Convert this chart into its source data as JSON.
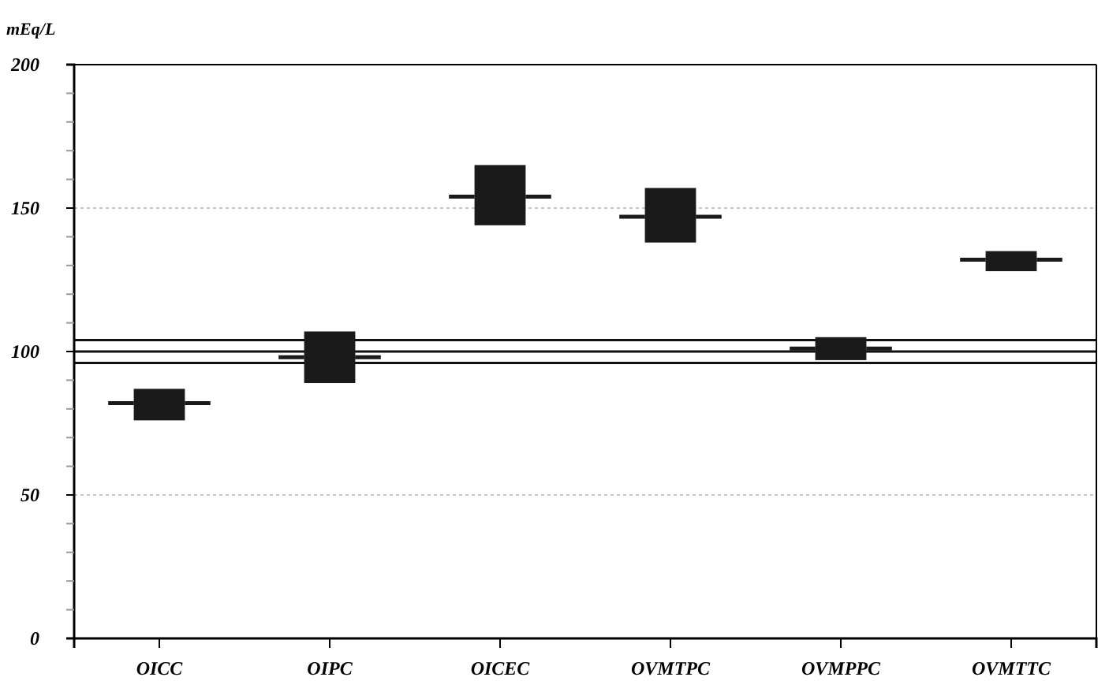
{
  "chart_data": {
    "type": "box",
    "ylabel": "mEq/L",
    "categories": [
      "OICC",
      "OIPC",
      "OICEC",
      "OVMTPC",
      "OVMPPC",
      "OVMTTC"
    ],
    "boxes": [
      {
        "low": 76,
        "q1": 76,
        "median": 82,
        "q3": 87,
        "high": 87
      },
      {
        "low": 89,
        "q1": 89,
        "median": 98,
        "q3": 107,
        "high": 107
      },
      {
        "low": 144,
        "q1": 144,
        "median": 154,
        "q3": 165,
        "high": 165
      },
      {
        "low": 138,
        "q1": 138,
        "median": 147,
        "q3": 157,
        "high": 157
      },
      {
        "low": 97,
        "q1": 97,
        "median": 101,
        "q3": 105,
        "high": 105
      },
      {
        "low": 128,
        "q1": 128,
        "median": 132,
        "q3": 135,
        "high": 135
      }
    ],
    "color": "#1a1a1a",
    "ylim": [
      0,
      200
    ],
    "yticks": [
      0,
      {
        "value": 10,
        "label": null
      },
      {
        "value": 20,
        "label": null
      },
      {
        "value": 30,
        "label": null
      },
      {
        "value": 40,
        "label": null
      },
      50,
      {
        "value": 60,
        "label": null
      },
      {
        "value": 70,
        "label": null
      },
      {
        "value": 80,
        "label": null
      },
      {
        "value": 90,
        "label": null
      },
      100,
      {
        "value": 110,
        "label": null
      },
      {
        "value": 120,
        "label": null
      },
      {
        "value": 130,
        "label": null
      },
      {
        "value": 140,
        "label": null
      },
      150,
      {
        "value": 160,
        "label": null
      },
      {
        "value": 170,
        "label": null
      },
      {
        "value": 180,
        "label": null
      },
      {
        "value": 190,
        "label": null
      },
      200
    ],
    "grid": "y",
    "ref_lines": [
      {
        "axis": "y",
        "value": 104,
        "color": "#111111"
      },
      {
        "axis": "y",
        "value": 100,
        "color": "#111111"
      },
      {
        "axis": "y",
        "value": 96,
        "color": "#111111"
      }
    ]
  }
}
